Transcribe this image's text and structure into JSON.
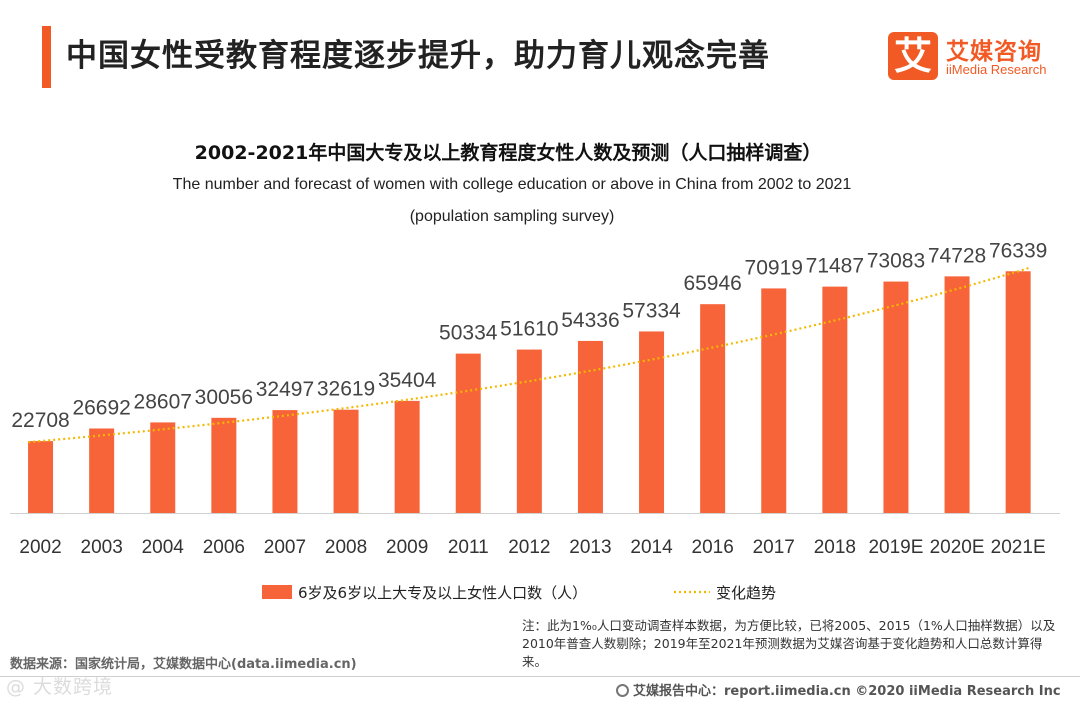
{
  "header": {
    "title": "中国女性受教育程度逐步提升，助力育儿观念完善",
    "logo_mark": "艾",
    "logo_cn": "艾媒咨询",
    "logo_en": "iiMedia Research"
  },
  "chart_data": {
    "type": "bar",
    "title": "2002-2021年中国大专及以上教育程度女性人数及预测（人口抽样调查）",
    "subtitle_line1": "The number and forecast of women with college education or above in China from 2002 to 2021",
    "subtitle_line2": "(population sampling survey)",
    "categories": [
      "2002",
      "2003",
      "2004",
      "2006",
      "2007",
      "2008",
      "2009",
      "2011",
      "2012",
      "2013",
      "2014",
      "2016",
      "2017",
      "2018",
      "2019E",
      "2020E",
      "2021E"
    ],
    "series": [
      {
        "name": "6岁及6岁以上大专及以上女性人口数（人）",
        "type": "bar",
        "color": "#f7643a",
        "values": [
          22708,
          26692,
          28607,
          30056,
          32497,
          32619,
          35404,
          50334,
          51610,
          54336,
          57334,
          65946,
          70919,
          71487,
          73083,
          74728,
          76339
        ]
      },
      {
        "name": "变化趋势",
        "type": "trendline",
        "color": "#f5b800"
      }
    ],
    "ylim": [
      0,
      90000
    ],
    "xlabel": "",
    "ylabel": ""
  },
  "legend": {
    "bar_label": "6岁及6岁以上大专及以上女性人口数（人）",
    "trend_label": "变化趋势"
  },
  "footer": {
    "note": "注：此为1%₀人口变动调查样本数据，为方便比较，已将2005、2015（1%人口抽样数据）以及2010年普查人数剔除；2019年至2021年预测数据为艾媒咨询基于变化趋势和人口总数计算得来。",
    "source": "数据来源：国家统计局，艾媒数据中心(data.iimedia.cn)",
    "site": "艾媒报告中心：report.iimedia.cn  ©2020  iiMedia Research  Inc",
    "watermark": "@ 大数跨境"
  }
}
